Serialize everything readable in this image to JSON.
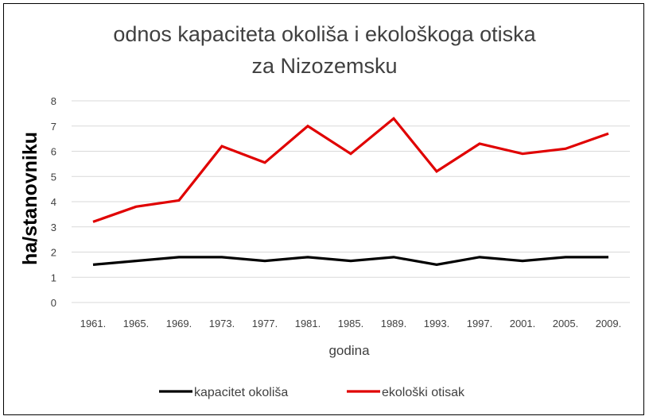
{
  "chart_data": {
    "type": "line",
    "title_line1": "odnos kapaciteta okoliša i ekološkoga otiska",
    "title_line2": "za Nizozemsku",
    "xlabel": "godina",
    "ylabel": "ha/stanovniku",
    "categories": [
      "1961.",
      "1965.",
      "1969.",
      "1973.",
      "1977.",
      "1981.",
      "1985.",
      "1989.",
      "1993.",
      "1997.",
      "2001.",
      "2005.",
      "2009."
    ],
    "ylim": [
      0,
      8
    ],
    "yticks": [
      "0",
      "1",
      "2",
      "3",
      "4",
      "5",
      "6",
      "7",
      "8"
    ],
    "grid": true,
    "legend_position": "bottom",
    "series": [
      {
        "name": "kapacitet okoliša",
        "color": "#000000",
        "values": [
          1.5,
          1.65,
          1.8,
          1.8,
          1.65,
          1.8,
          1.65,
          1.8,
          1.5,
          1.8,
          1.65,
          1.8,
          1.8
        ]
      },
      {
        "name": "ekološki otisak",
        "color": "#e00000",
        "values": [
          3.2,
          3.8,
          4.05,
          6.2,
          5.55,
          7.0,
          5.9,
          7.3,
          5.2,
          6.3,
          5.9,
          6.1,
          6.7
        ]
      }
    ]
  }
}
